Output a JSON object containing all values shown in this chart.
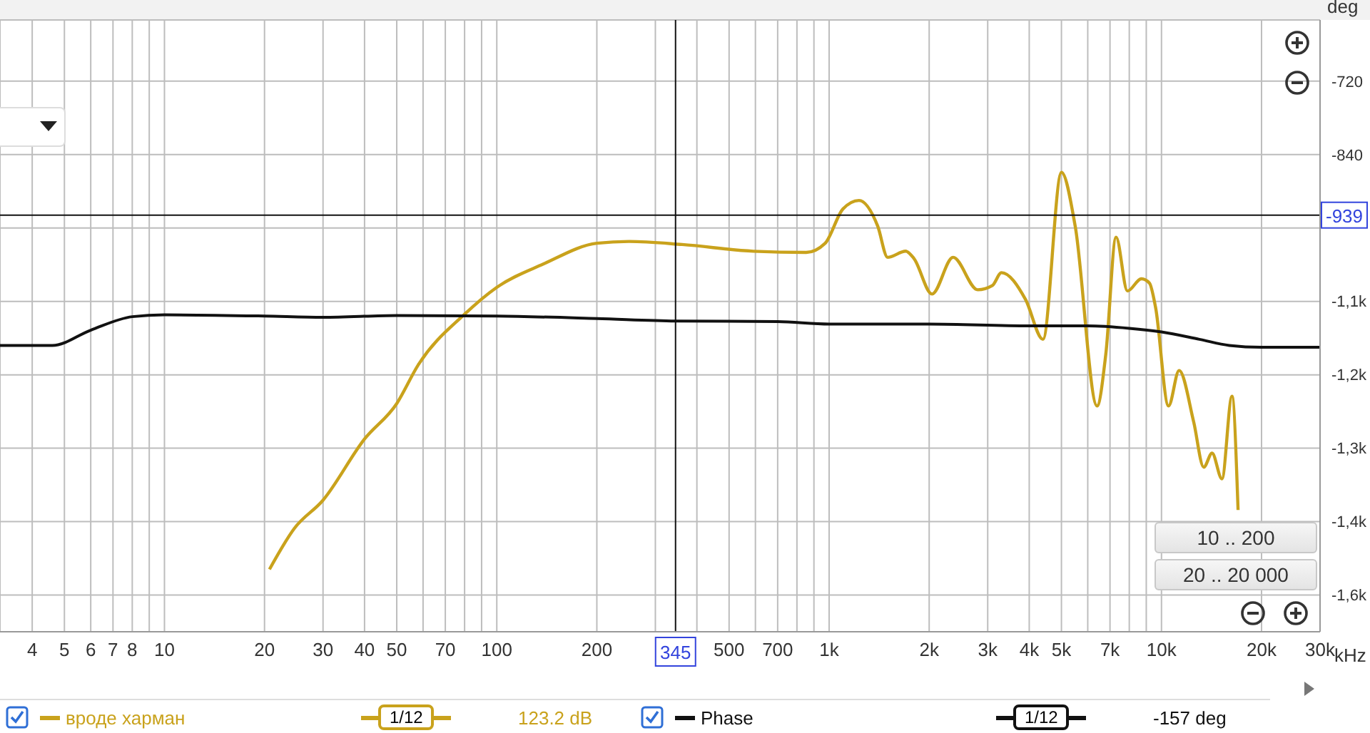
{
  "chart_data": {
    "type": "line",
    "ylabel": "deg",
    "log": "x",
    "grid": true,
    "legend": "bottom left",
    "marker": "none",
    "line_style": "solid",
    "xlim": [
      3.2,
      30000
    ],
    "ylim": [
      -1620,
      -620
    ],
    "xticks": [
      4,
      5,
      6,
      7,
      8,
      {
        "value": 9,
        "label": null
      },
      10,
      20,
      30,
      40,
      50,
      {
        "value": 60,
        "label": null
      },
      70,
      {
        "value": 80,
        "label": null
      },
      {
        "value": 90,
        "label": null
      },
      100,
      200,
      {
        "value": 300,
        "label": null
      },
      {
        "value": 400,
        "label": null
      },
      500,
      {
        "value": 600,
        "label": null
      },
      700,
      {
        "value": 800,
        "label": null
      },
      {
        "value": 900,
        "label": null
      },
      {
        "value": 1000,
        "label": "1k"
      },
      {
        "value": 2000,
        "label": "2k"
      },
      {
        "value": 3000,
        "label": "3k"
      },
      {
        "value": 4000,
        "label": "4k"
      },
      {
        "value": 5000,
        "label": "5k"
      },
      {
        "value": 6000,
        "label": null
      },
      {
        "value": 7000,
        "label": "7k"
      },
      {
        "value": 8000,
        "label": null
      },
      {
        "value": 9000,
        "label": null
      },
      {
        "value": 10000,
        "label": "10k"
      },
      {
        "value": 20000,
        "label": "20k"
      },
      {
        "value": 30000,
        "label": "30k"
      }
    ],
    "xlabel": "kHz",
    "yticks": [
      -720,
      -840,
      {
        "value": -960,
        "label": null
      },
      {
        "value": -1080,
        "label": "-1,1k"
      },
      {
        "value": -1200,
        "label": "-1,2k"
      },
      {
        "value": -1320,
        "label": "-1,3k"
      },
      {
        "value": -1440,
        "label": "-1,4k"
      },
      {
        "value": -1560,
        "label": "-1,6k"
      }
    ],
    "series": [
      {
        "name": "вроде харман",
        "color": "#c9a21c",
        "x": [
          20.7,
          24.6,
          30,
          40,
          50,
          58,
          80,
          100,
          138,
          200,
          250,
          361,
          592,
          853,
          973,
          1100,
          1230,
          1400,
          1500,
          1700,
          1800,
          2040,
          2360,
          2800,
          3100,
          3300,
          3900,
          4400,
          5000,
          5500,
          6400,
          6800,
          7300,
          7900,
          8700,
          9200,
          9600,
          10500,
          11300,
          12500,
          13400,
          14200,
          15200,
          16300,
          17000
        ],
        "values": [
          -1518,
          -1451,
          -1405,
          -1305,
          -1247,
          -1184,
          -1101,
          -1057,
          -1019,
          -985,
          -982,
          -987,
          -998,
          -1000,
          -985,
          -929,
          -915,
          -957,
          -1008,
          -998,
          -1010,
          -1068,
          -1008,
          -1061,
          -1054,
          -1033,
          -1077,
          -1142,
          -869,
          -957,
          -1251,
          -1166,
          -975,
          -1063,
          -1043,
          -1050,
          -1090,
          -1251,
          -1193,
          -1277,
          -1351,
          -1328,
          -1370,
          -1235,
          -1421
        ]
      },
      {
        "name": "Phase",
        "color": "#111111",
        "x": [
          3.2,
          4.6,
          6,
          8,
          10,
          20,
          30,
          50,
          100,
          200,
          345,
          700,
          1000,
          2000,
          4000,
          6000,
          8000,
          10000,
          13000,
          16000,
          20000,
          30000
        ],
        "values": [
          -1152,
          -1152,
          -1127,
          -1105,
          -1102,
          -1104,
          -1106,
          -1103,
          -1104,
          -1108,
          -1112,
          -1113,
          -1117,
          -1117,
          -1120,
          -1120,
          -1124,
          -1130,
          -1142,
          -1152,
          -1155,
          -1155
        ]
      }
    ],
    "ref_lines": [
      {
        "axis": "y",
        "value": -939,
        "label": "-939",
        "color": "#111111"
      },
      {
        "axis": "x",
        "value": 345,
        "label": "345",
        "color": "#111111"
      }
    ],
    "annotations": [
      "10 .. 200",
      "20 .. 20 000",
      "1/12",
      "123.2 dB",
      "1/12",
      "-157 deg"
    ]
  }
}
